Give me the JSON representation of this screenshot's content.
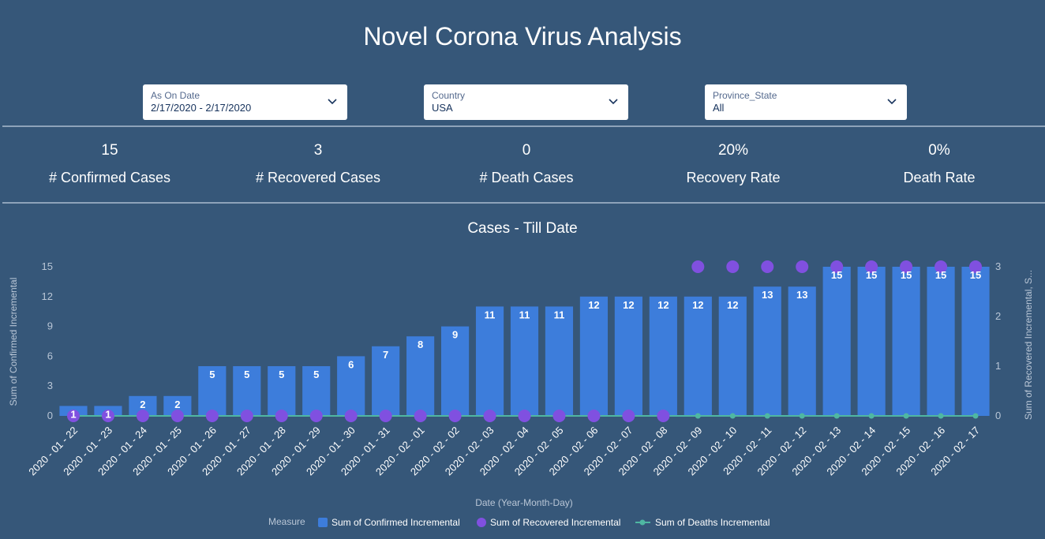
{
  "header": {
    "title": "Novel Corona Virus Analysis"
  },
  "filters": [
    {
      "label": "As On Date",
      "value": "2/17/2020 - 2/17/2020"
    },
    {
      "label": "Country",
      "value": "USA"
    },
    {
      "label": "Province_State",
      "value": "All"
    }
  ],
  "kpis": [
    {
      "value": "15",
      "label": "# Confirmed Cases"
    },
    {
      "value": "3",
      "label": "# Recovered Cases"
    },
    {
      "value": "0",
      "label": "# Death Cases"
    },
    {
      "value": "20%",
      "label": "Recovery Rate"
    },
    {
      "value": "0%",
      "label": "Death Rate"
    }
  ],
  "colors": {
    "background": "#365779",
    "confirmed": "#3d7ddb",
    "recovered": "#8050e0",
    "deaths": "#4fb7a2",
    "axis_text": "#b9c6d6"
  },
  "chart_data": {
    "type": "bar",
    "title": "Cases - Till Date",
    "xlabel": "Date (Year-Month-Day)",
    "ylabel": "Sum of Confirmed Incremental",
    "ylabel_right": "Sum of Recovered Incremental, S...",
    "legend_title": "Measure",
    "legend_position": "bottom",
    "ylim": [
      0,
      15
    ],
    "yticks": [
      0,
      3,
      6,
      9,
      12,
      15
    ],
    "ylim_right": [
      0,
      3
    ],
    "yticks_right": [
      0,
      1,
      2,
      3
    ],
    "categories": [
      "2020 - 01 - 22",
      "2020 - 01 - 23",
      "2020 - 01 - 24",
      "2020 - 01 - 25",
      "2020 - 01 - 26",
      "2020 - 01 - 27",
      "2020 - 01 - 28",
      "2020 - 01 - 29",
      "2020 - 01 - 30",
      "2020 - 01 - 31",
      "2020 - 02 - 01",
      "2020 - 02 - 02",
      "2020 - 02 - 03",
      "2020 - 02 - 04",
      "2020 - 02 - 05",
      "2020 - 02 - 06",
      "2020 - 02 - 07",
      "2020 - 02 - 08",
      "2020 - 02 - 09",
      "2020 - 02 - 10",
      "2020 - 02 - 11",
      "2020 - 02 - 12",
      "2020 - 02 - 13",
      "2020 - 02 - 14",
      "2020 - 02 - 15",
      "2020 - 02 - 16",
      "2020 - 02 - 17"
    ],
    "series": [
      {
        "name": "Sum of Confirmed Incremental",
        "kind": "bar",
        "axis": "left",
        "values": [
          1,
          1,
          2,
          2,
          5,
          5,
          5,
          5,
          6,
          7,
          8,
          9,
          11,
          11,
          11,
          12,
          12,
          12,
          12,
          12,
          13,
          13,
          15,
          15,
          15,
          15,
          15
        ]
      },
      {
        "name": "Sum of Recovered Incremental",
        "kind": "point",
        "axis": "right",
        "values": [
          0,
          0,
          0,
          0,
          0,
          0,
          0,
          0,
          0,
          0,
          0,
          0,
          0,
          0,
          0,
          0,
          0,
          0,
          3,
          3,
          3,
          3,
          3,
          3,
          3,
          3,
          3
        ]
      },
      {
        "name": "Sum of Deaths Incremental",
        "kind": "line",
        "axis": "right",
        "values": [
          0,
          0,
          0,
          0,
          0,
          0,
          0,
          0,
          0,
          0,
          0,
          0,
          0,
          0,
          0,
          0,
          0,
          0,
          0,
          0,
          0,
          0,
          0,
          0,
          0,
          0,
          0
        ]
      }
    ]
  }
}
